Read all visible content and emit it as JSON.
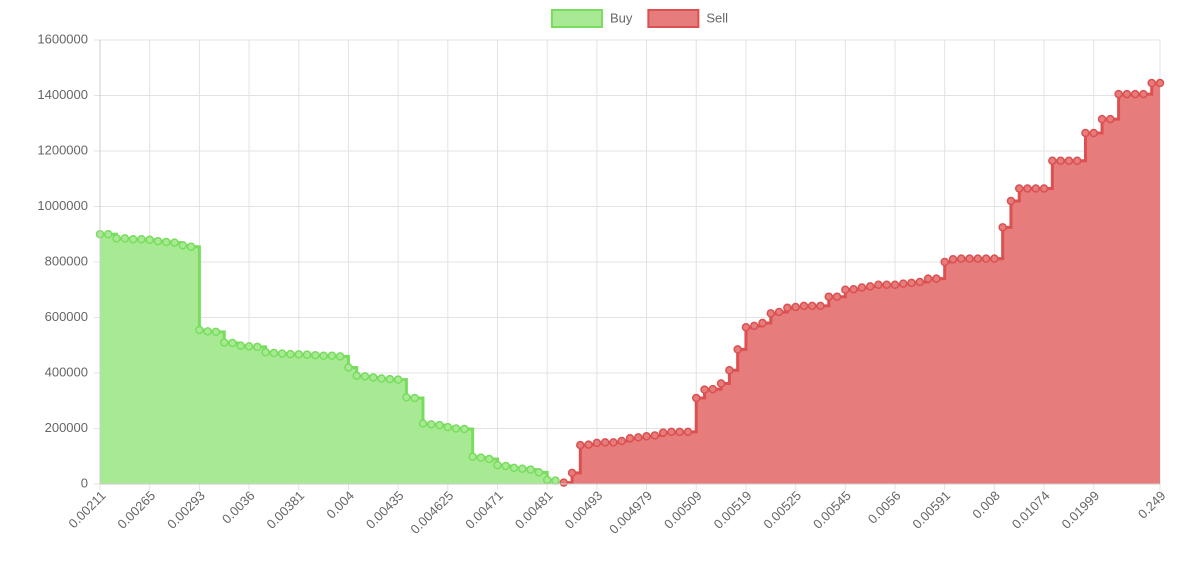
{
  "chart_data": {
    "type": "line",
    "stepped": true,
    "categories": [
      "0.00211",
      null,
      null,
      null,
      null,
      null,
      "0.00265",
      null,
      null,
      null,
      null,
      null,
      "0.00293",
      null,
      null,
      null,
      null,
      null,
      "0.0036",
      null,
      null,
      null,
      null,
      null,
      "0.00381",
      null,
      null,
      null,
      null,
      null,
      "0.004",
      null,
      null,
      null,
      null,
      null,
      "0.00435",
      null,
      null,
      null,
      null,
      null,
      "0.004625",
      null,
      null,
      null,
      null,
      null,
      "0.00471",
      null,
      null,
      null,
      null,
      null,
      "0.00481",
      null,
      null,
      null,
      null,
      null,
      "0.00493",
      null,
      null,
      null,
      null,
      null,
      "0.004979",
      null,
      null,
      null,
      null,
      null,
      "0.00509",
      null,
      null,
      null,
      null,
      null,
      "0.00519",
      null,
      null,
      null,
      null,
      null,
      "0.00525",
      null,
      null,
      null,
      null,
      null,
      "0.00545",
      null,
      null,
      null,
      null,
      null,
      "0.0056",
      null,
      null,
      null,
      null,
      null,
      "0.00591",
      null,
      null,
      null,
      null,
      null,
      "0.008",
      null,
      null,
      null,
      null,
      null,
      "0.01074",
      null,
      null,
      null,
      null,
      null,
      "0.01999",
      null,
      null,
      null,
      null,
      null,
      null,
      null,
      "0.249"
    ],
    "series": [
      {
        "name": "Buy",
        "color": "#78dd5e",
        "fill": "#a8ea94",
        "values": [
          900000,
          900000,
          885000,
          885000,
          882000,
          882000,
          880000,
          875000,
          872000,
          870000,
          860000,
          855000,
          555000,
          550000,
          548000,
          510000,
          508000,
          498000,
          496000,
          494000,
          475000,
          472000,
          470000,
          468000,
          467000,
          466000,
          464000,
          462000,
          462000,
          460000,
          420000,
          390000,
          388000,
          384000,
          380000,
          378000,
          376000,
          312000,
          310000,
          218000,
          215000,
          212000,
          205000,
          200000,
          198000,
          98000,
          95000,
          90000,
          68000,
          65000,
          58000,
          55000,
          52000,
          42000,
          15000,
          12000,
          null,
          null,
          null,
          null,
          null,
          null,
          null,
          null,
          null,
          null,
          null,
          null,
          null,
          null,
          null,
          null,
          null,
          null,
          null,
          null,
          null,
          null,
          null,
          null,
          null,
          null,
          null,
          null,
          null,
          null,
          null,
          null,
          null,
          null,
          null,
          null,
          null,
          null,
          null,
          null,
          null,
          null,
          null,
          null,
          null,
          null,
          null,
          null,
          null,
          null,
          null,
          null,
          null,
          null,
          null,
          null,
          null,
          null,
          null,
          null,
          null,
          null,
          null,
          null,
          null,
          null,
          null,
          null,
          null,
          null,
          null,
          null,
          null
        ]
      },
      {
        "name": "Sell",
        "color": "#dc5050",
        "fill": "#e67c7c",
        "values": [
          null,
          null,
          null,
          null,
          null,
          null,
          null,
          null,
          null,
          null,
          null,
          null,
          null,
          null,
          null,
          null,
          null,
          null,
          null,
          null,
          null,
          null,
          null,
          null,
          null,
          null,
          null,
          null,
          null,
          null,
          null,
          null,
          null,
          null,
          null,
          null,
          null,
          null,
          null,
          null,
          null,
          null,
          null,
          null,
          null,
          null,
          null,
          null,
          null,
          null,
          null,
          null,
          null,
          null,
          null,
          null,
          5000,
          40000,
          140000,
          142000,
          148000,
          150000,
          150000,
          155000,
          165000,
          168000,
          172000,
          175000,
          185000,
          188000,
          188000,
          188000,
          310000,
          340000,
          342000,
          362000,
          410000,
          485000,
          565000,
          570000,
          580000,
          615000,
          620000,
          635000,
          638000,
          642000,
          642000,
          642000,
          675000,
          675000,
          700000,
          702000,
          708000,
          712000,
          718000,
          718000,
          718000,
          722000,
          725000,
          728000,
          740000,
          740000,
          800000,
          810000,
          812000,
          812000,
          812000,
          812000,
          812000,
          925000,
          1020000,
          1065000,
          1065000,
          1065000,
          1065000,
          1165000,
          1165000,
          1165000,
          1165000,
          1265000,
          1265000,
          1315000,
          1315000,
          1405000,
          1405000,
          1405000,
          1405000,
          1445000,
          1445000
        ]
      }
    ],
    "ylim": [
      0,
      1600000
    ],
    "yticks": [
      0,
      200000,
      400000,
      600000,
      800000,
      1000000,
      1200000,
      1400000,
      1600000
    ],
    "grid": true,
    "legend": "top"
  }
}
